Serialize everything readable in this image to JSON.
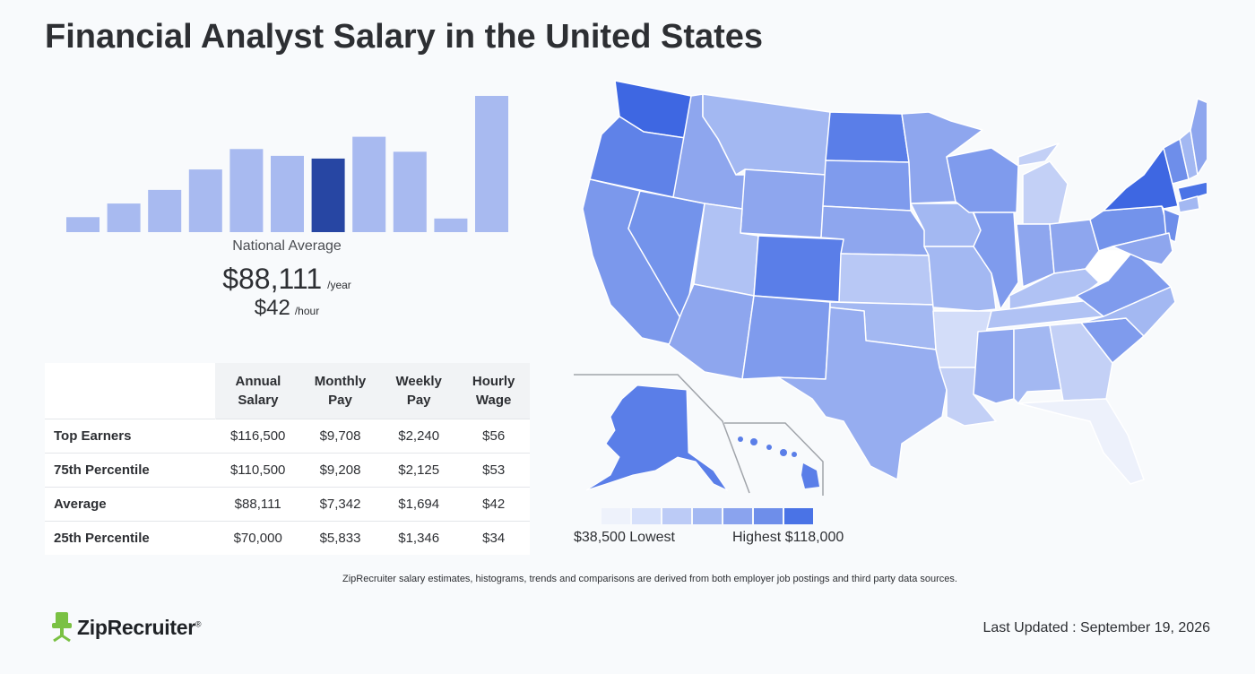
{
  "title": "Financial Analyst Salary in the United States",
  "histogram": {
    "bars": [
      0.11,
      0.21,
      0.31,
      0.46,
      0.61,
      0.56,
      0.54,
      0.7,
      0.59,
      0.1,
      1.0
    ],
    "highlight_index": 6,
    "color": "#a8baf0",
    "highlight_color": "#2746a3"
  },
  "national": {
    "label": "National Average",
    "annual": "$88,111",
    "annual_unit": "/year",
    "hourly": "$42",
    "hourly_unit": "/hour"
  },
  "table": {
    "headers": [
      [
        "Annual",
        "Salary"
      ],
      [
        "Monthly",
        "Pay"
      ],
      [
        "Weekly",
        "Pay"
      ],
      [
        "Hourly",
        "Wage"
      ]
    ],
    "rows": [
      {
        "label": "Top Earners",
        "cells": [
          "$116,500",
          "$9,708",
          "$2,240",
          "$56"
        ]
      },
      {
        "label": "75th Percentile",
        "cells": [
          "$110,500",
          "$9,208",
          "$2,125",
          "$53"
        ]
      },
      {
        "label": "Average",
        "cells": [
          "$88,111",
          "$7,342",
          "$1,694",
          "$42"
        ]
      },
      {
        "label": "25th Percentile",
        "cells": [
          "$70,000",
          "$5,833",
          "$1,346",
          "$34"
        ]
      }
    ]
  },
  "map": {
    "legend_colors": [
      "#eef2fb",
      "#d6e0fa",
      "#bccbf6",
      "#a3b8f2",
      "#8aa3ee",
      "#6e8eea",
      "#4a73e6"
    ],
    "legend_low": "$38,500 Lowest",
    "legend_high": "Highest $118,000"
  },
  "footnote": "ZipRecruiter salary estimates, histograms, trends and comparisons are derived from both employer job postings and third party data sources.",
  "logo": {
    "name": "ZipRecruiter",
    "mark": "®",
    "color": "#7ac143"
  },
  "updated": "Last Updated : September 19, 2026",
  "chart_data": {
    "type": "bar",
    "values": [
      0.11,
      0.21,
      0.31,
      0.46,
      0.61,
      0.56,
      0.54,
      0.7,
      0.59,
      0.1,
      1.0
    ],
    "highlight_index": 6
  }
}
